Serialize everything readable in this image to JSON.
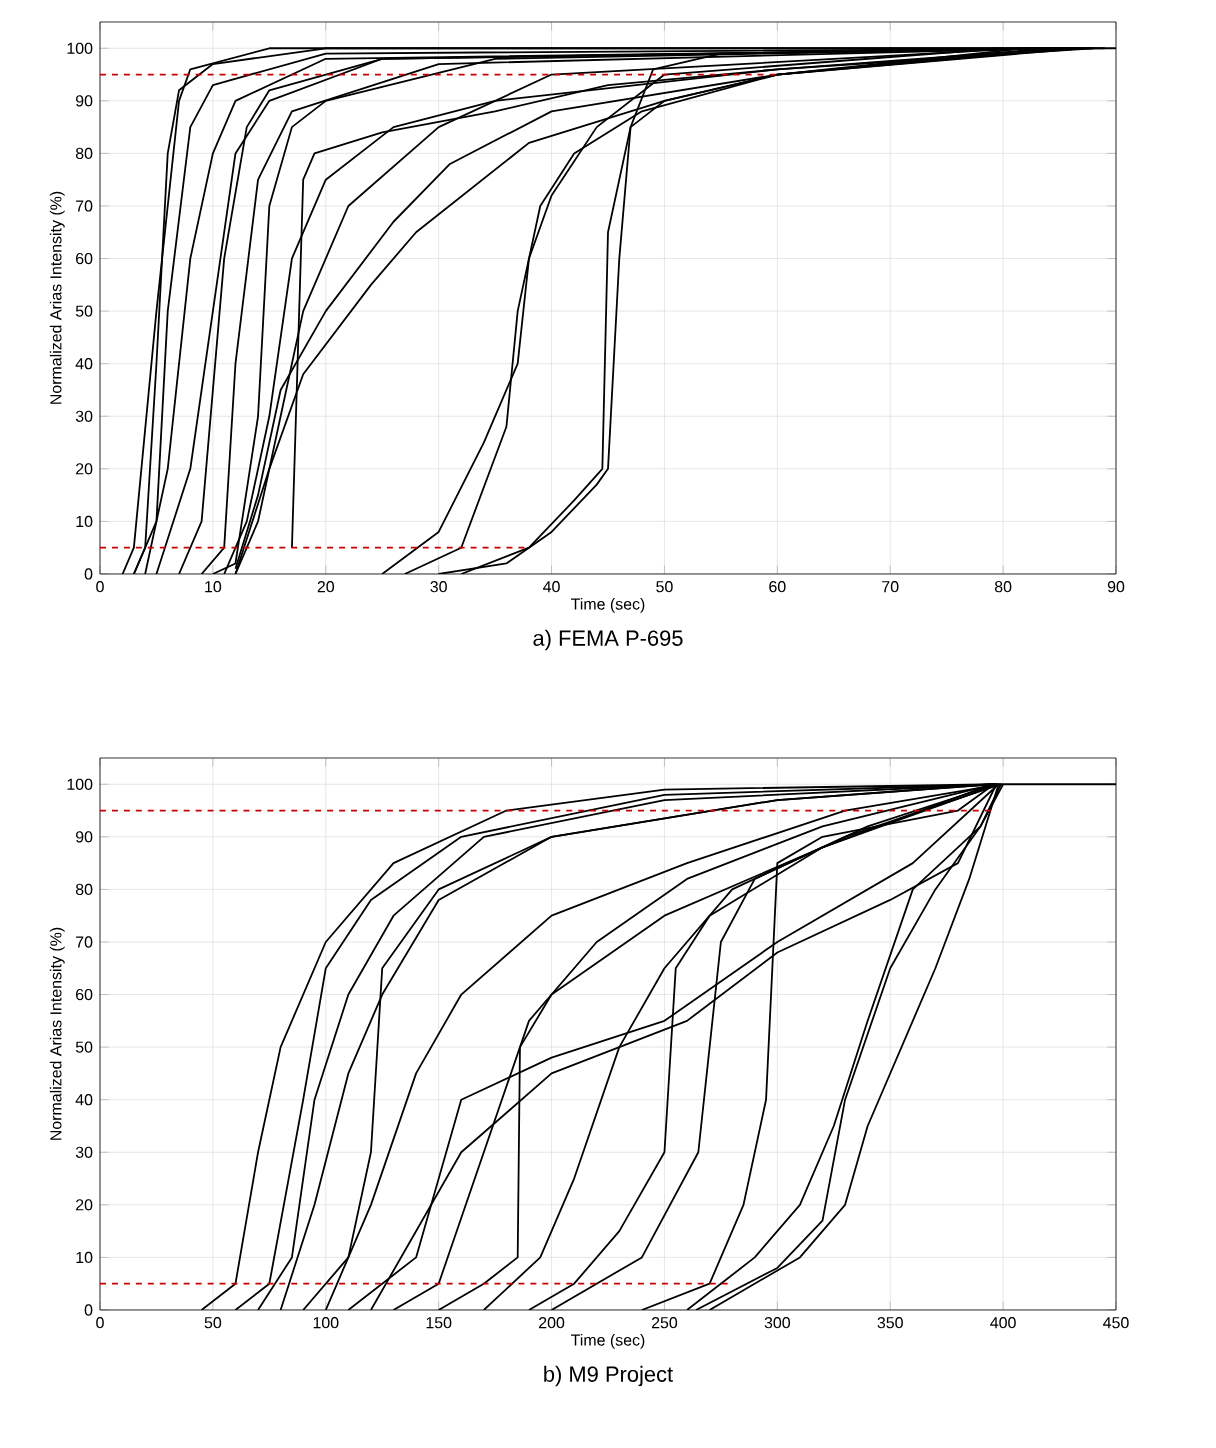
{
  "chart_data": [
    {
      "type": "line",
      "title": "a) FEMA P-695",
      "xlabel": "Time (sec)",
      "ylabel": "Normalized Arias Intensity (%)",
      "xlim": [
        0,
        90
      ],
      "ylim": [
        0,
        105
      ],
      "xticks": [
        0,
        10,
        20,
        30,
        40,
        50,
        60,
        70,
        80,
        90
      ],
      "yticks": [
        0,
        10,
        20,
        30,
        40,
        50,
        60,
        70,
        80,
        90,
        100
      ],
      "grid": true,
      "series": [
        {
          "color": "#000000",
          "x": [
            2,
            3,
            5,
            7,
            8,
            15,
            90
          ],
          "values": [
            0,
            5,
            50,
            90,
            96,
            100,
            100
          ]
        },
        {
          "color": "#000000",
          "x": [
            3,
            4,
            5,
            6,
            7,
            10,
            20,
            89
          ],
          "values": [
            0,
            5,
            40,
            80,
            92,
            97,
            100,
            100
          ]
        },
        {
          "color": "#000000",
          "x": [
            3,
            5,
            6,
            8,
            10,
            20,
            88
          ],
          "values": [
            0,
            10,
            50,
            85,
            93,
            99,
            100
          ]
        },
        {
          "color": "#000000",
          "x": [
            4,
            6,
            8,
            10,
            12,
            20,
            87
          ],
          "values": [
            0,
            20,
            60,
            80,
            90,
            98,
            100
          ]
        },
        {
          "color": "#000000",
          "x": [
            5,
            8,
            10,
            12,
            15,
            25,
            86
          ],
          "values": [
            0,
            20,
            50,
            80,
            90,
            98,
            100
          ]
        },
        {
          "color": "#000000",
          "x": [
            7,
            9,
            11,
            13,
            15,
            25,
            85
          ],
          "values": [
            0,
            10,
            60,
            85,
            92,
            98,
            100
          ]
        },
        {
          "color": "#000000",
          "x": [
            9,
            11,
            12,
            14,
            17,
            30,
            84
          ],
          "values": [
            0,
            5,
            40,
            75,
            88,
            97,
            100
          ]
        },
        {
          "color": "#000000",
          "x": [
            10,
            12,
            14,
            15,
            17,
            20,
            35,
            83
          ],
          "values": [
            0,
            2,
            30,
            70,
            85,
            90,
            98,
            100
          ]
        },
        {
          "color": "#000000",
          "x": [
            12,
            14,
            16,
            18,
            22,
            30,
            40,
            82
          ],
          "values": [
            0,
            10,
            30,
            50,
            70,
            85,
            95,
            100
          ]
        },
        {
          "color": "#000000",
          "x": [
            11,
            13,
            15,
            17,
            20,
            26,
            35,
            60,
            88
          ],
          "values": [
            0,
            10,
            30,
            60,
            75,
            85,
            90,
            96,
            100
          ]
        },
        {
          "color": "#000000",
          "x": [
            12,
            14,
            16,
            20,
            26,
            31,
            40,
            60,
            87
          ],
          "values": [
            1,
            15,
            35,
            50,
            67,
            78,
            88,
            95,
            100
          ]
        },
        {
          "color": "#000000",
          "x": [
            12,
            15,
            18,
            24,
            28,
            38,
            50,
            60,
            86
          ],
          "values": [
            0,
            20,
            38,
            55,
            65,
            82,
            90,
            95,
            100
          ]
        },
        {
          "color": "#000000",
          "x": [
            17,
            18,
            19,
            25,
            35,
            45,
            60,
            85
          ],
          "values": [
            5,
            75,
            80,
            84,
            88,
            93,
            96,
            100
          ]
        },
        {
          "color": "#000000",
          "x": [
            25,
            30,
            34,
            37,
            38,
            40,
            44,
            50,
            80
          ],
          "values": [
            0,
            8,
            25,
            40,
            60,
            72,
            85,
            95,
            100
          ]
        },
        {
          "color": "#000000",
          "x": [
            27,
            32,
            36,
            37,
            39,
            42,
            48,
            60,
            84
          ],
          "values": [
            0,
            5,
            28,
            50,
            70,
            80,
            88,
            95,
            100
          ]
        },
        {
          "color": "#000000",
          "x": [
            30,
            36,
            40,
            44,
            45,
            46,
            47,
            49,
            55,
            83
          ],
          "values": [
            0,
            2,
            8,
            17,
            20,
            60,
            85,
            96,
            99,
            100
          ]
        },
        {
          "color": "#000000",
          "x": [
            32,
            38,
            42,
            44.5,
            45,
            47,
            50,
            60,
            82
          ],
          "values": [
            0,
            5,
            14,
            20,
            65,
            85,
            90,
            95,
            100
          ]
        },
        {
          "color": "#cc0000",
          "line_style": "dashed",
          "x": [
            0,
            38
          ],
          "values": [
            5,
            5
          ]
        },
        {
          "color": "#cc0000",
          "line_style": "dashed",
          "x": [
            0,
            60
          ],
          "values": [
            95,
            95
          ]
        }
      ]
    },
    {
      "type": "line",
      "title": "b) M9 Project",
      "xlabel": "Time (sec)",
      "ylabel": "Normalized Arias Intensity (%)",
      "xlim": [
        0,
        450
      ],
      "ylim": [
        0,
        105
      ],
      "xticks": [
        0,
        50,
        100,
        150,
        200,
        250,
        300,
        350,
        400,
        450
      ],
      "yticks": [
        0,
        10,
        20,
        30,
        40,
        50,
        60,
        70,
        80,
        90,
        100
      ],
      "grid": true,
      "series": [
        {
          "color": "#000000",
          "x": [
            45,
            60,
            70,
            80,
            100,
            130,
            180,
            250,
            399,
            450
          ],
          "values": [
            0,
            5,
            30,
            50,
            70,
            85,
            95,
            99,
            100,
            100
          ]
        },
        {
          "color": "#000000",
          "x": [
            60,
            75,
            90,
            100,
            120,
            160,
            250,
            398
          ],
          "values": [
            0,
            5,
            40,
            65,
            78,
            90,
            98,
            100
          ]
        },
        {
          "color": "#000000",
          "x": [
            70,
            85,
            95,
            110,
            130,
            170,
            250,
            397
          ],
          "values": [
            0,
            10,
            40,
            60,
            75,
            90,
            97,
            100
          ]
        },
        {
          "color": "#000000",
          "x": [
            80,
            95,
            110,
            125,
            150,
            200,
            300,
            396
          ],
          "values": [
            0,
            20,
            45,
            60,
            78,
            90,
            97,
            100
          ]
        },
        {
          "color": "#000000",
          "x": [
            90,
            110,
            120,
            125,
            150,
            200,
            300,
            395
          ],
          "values": [
            0,
            10,
            30,
            65,
            80,
            90,
            97,
            100
          ]
        },
        {
          "color": "#000000",
          "x": [
            100,
            120,
            140,
            160,
            200,
            260,
            330,
            399
          ],
          "values": [
            0,
            20,
            45,
            60,
            75,
            85,
            95,
            100
          ]
        },
        {
          "color": "#000000",
          "x": [
            110,
            140,
            160,
            200,
            250,
            300,
            360,
            398
          ],
          "values": [
            0,
            10,
            40,
            48,
            55,
            70,
            85,
            100
          ]
        },
        {
          "color": "#000000",
          "x": [
            120,
            160,
            200,
            260,
            300,
            350,
            380,
            397
          ],
          "values": [
            0,
            30,
            45,
            55,
            68,
            78,
            85,
            100
          ]
        },
        {
          "color": "#000000",
          "x": [
            130,
            150,
            170,
            190,
            220,
            260,
            320,
            396
          ],
          "values": [
            0,
            5,
            30,
            55,
            70,
            82,
            92,
            100
          ]
        },
        {
          "color": "#000000",
          "x": [
            150,
            170,
            185,
            186,
            200,
            250,
            320,
            395
          ],
          "values": [
            0,
            5,
            10,
            50,
            60,
            75,
            88,
            100
          ]
        },
        {
          "color": "#000000",
          "x": [
            170,
            195,
            210,
            230,
            250,
            280,
            330,
            399
          ],
          "values": [
            0,
            10,
            25,
            50,
            65,
            80,
            90,
            100
          ]
        },
        {
          "color": "#000000",
          "x": [
            190,
            210,
            230,
            250,
            255,
            270,
            320,
            398
          ],
          "values": [
            0,
            5,
            15,
            30,
            65,
            75,
            88,
            100
          ]
        },
        {
          "color": "#000000",
          "x": [
            200,
            240,
            265,
            270,
            275,
            290,
            340,
            397
          ],
          "values": [
            0,
            10,
            30,
            50,
            70,
            82,
            92,
            100
          ]
        },
        {
          "color": "#000000",
          "x": [
            240,
            270,
            285,
            295,
            300,
            320,
            380,
            396
          ],
          "values": [
            0,
            5,
            20,
            40,
            85,
            90,
            95,
            100
          ]
        },
        {
          "color": "#000000",
          "x": [
            260,
            290,
            310,
            325,
            340,
            360,
            390,
            400
          ],
          "values": [
            0,
            10,
            20,
            35,
            55,
            80,
            92,
            100
          ]
        },
        {
          "color": "#000000",
          "x": [
            264,
            300,
            320,
            330,
            350,
            370,
            390,
            399
          ],
          "values": [
            0,
            8,
            17,
            40,
            65,
            80,
            92,
            100
          ]
        },
        {
          "color": "#000000",
          "x": [
            270,
            310,
            330,
            340,
            355,
            370,
            385,
            398
          ],
          "values": [
            0,
            10,
            20,
            35,
            50,
            65,
            82,
            100
          ]
        },
        {
          "color": "#cc0000",
          "line_style": "dashed",
          "x": [
            0,
            280
          ],
          "values": [
            5,
            5
          ]
        },
        {
          "color": "#cc0000",
          "line_style": "dashed",
          "x": [
            0,
            395
          ],
          "values": [
            95,
            95
          ]
        }
      ]
    }
  ]
}
